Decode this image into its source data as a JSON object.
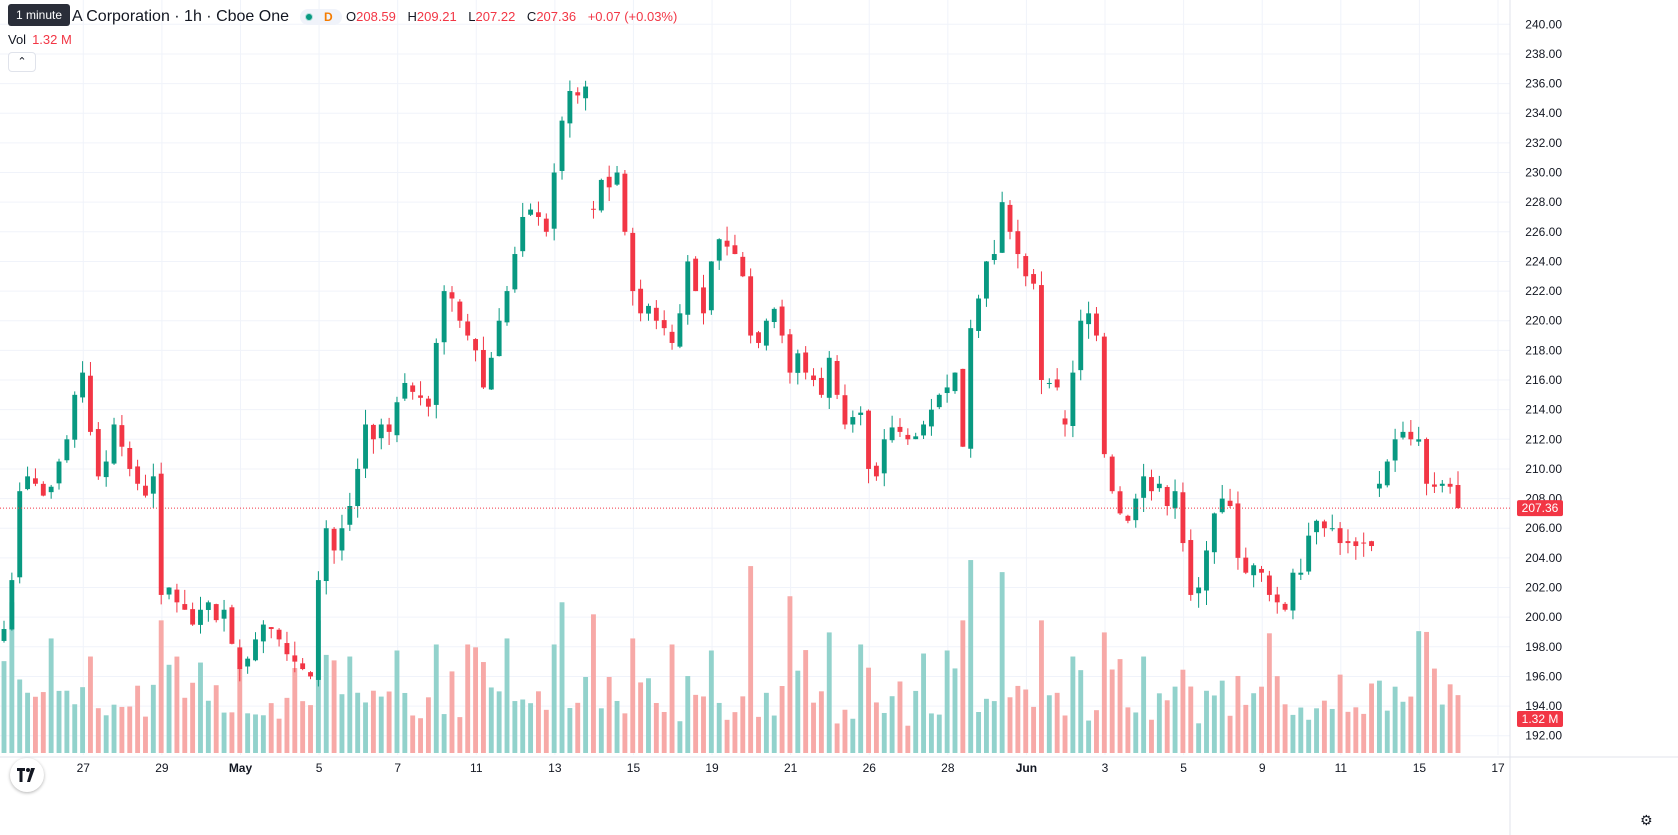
{
  "header": {
    "tooltip": "1 minute",
    "title": "A Corporation · 1h · Cboe One",
    "status_letter": "D",
    "ohlc": {
      "o_label": "O",
      "o": "208.59",
      "h_label": "H",
      "h": "209.21",
      "l_label": "L",
      "l": "207.22",
      "c_label": "C",
      "c": "207.36",
      "change": "+0.07 (+0.03%)"
    },
    "volume_label": "Vol",
    "volume_value": "1.32 M",
    "collapse_icon": "chevron-up-icon"
  },
  "colors": {
    "up": "#089981",
    "down": "#f23645",
    "up_volume": "#92d2cc",
    "down_volume": "#f7a9a7",
    "grid": "#f0f3fa",
    "price_line": "#f23645"
  },
  "chart_data": {
    "type": "candlestick",
    "interval": "1h",
    "y_axis_ticks": [
      "240.00",
      "238.00",
      "236.00",
      "234.00",
      "232.00",
      "230.00",
      "228.00",
      "226.00",
      "224.00",
      "222.00",
      "220.00",
      "218.00",
      "216.00",
      "214.00",
      "212.00",
      "210.00",
      "208.00",
      "206.00",
      "204.00",
      "202.00",
      "200.00",
      "198.00",
      "196.00",
      "194.00",
      "192.00"
    ],
    "ylim": [
      190.7,
      241.1
    ],
    "x_axis_ticks": [
      {
        "label": "27",
        "slot": 5
      },
      {
        "label": "29",
        "slot": 15
      },
      {
        "label": "May",
        "slot": 25
      },
      {
        "label": "5",
        "slot": 35
      },
      {
        "label": "7",
        "slot": 45
      },
      {
        "label": "11",
        "slot": 55
      },
      {
        "label": "13",
        "slot": 65
      },
      {
        "label": "15",
        "slot": 75
      },
      {
        "label": "19",
        "slot": 85
      },
      {
        "label": "21",
        "slot": 95
      },
      {
        "label": "26",
        "slot": 105
      },
      {
        "label": "28",
        "slot": 115
      },
      {
        "label": "Jun",
        "slot": 125
      },
      {
        "label": "3",
        "slot": 135
      },
      {
        "label": "5",
        "slot": 145
      },
      {
        "label": "9",
        "slot": 155
      },
      {
        "label": "11",
        "slot": 165
      },
      {
        "label": "15",
        "slot": 175
      },
      {
        "label": "17",
        "slot": 185
      }
    ],
    "last_price": 207.36,
    "last_price_label": "207.36",
    "last_volume_label": "1.32 M",
    "volume_scale_max": 3.4,
    "gaps_after_slots": [
      74,
      134,
      174
    ],
    "close_path": [
      [
        0,
        199.2
      ],
      [
        1,
        202.5
      ],
      [
        2,
        208.5
      ],
      [
        3,
        209.5
      ],
      [
        4,
        209.0
      ],
      [
        5,
        208.2
      ],
      [
        6,
        208.8
      ],
      [
        7,
        210.5
      ],
      [
        8,
        212.0
      ],
      [
        9,
        215.0
      ],
      [
        10,
        216.5
      ],
      [
        11,
        212.5
      ],
      [
        12,
        209.5
      ],
      [
        13,
        210.5
      ],
      [
        14,
        213.0
      ],
      [
        15,
        211.5
      ],
      [
        16,
        210.0
      ],
      [
        17,
        209.0
      ],
      [
        18,
        208.2
      ],
      [
        19,
        209.5
      ],
      [
        20,
        201.5
      ],
      [
        21,
        202.0
      ],
      [
        22,
        201.0
      ],
      [
        23,
        200.5
      ],
      [
        24,
        199.5
      ],
      [
        25,
        200.5
      ],
      [
        26,
        201.0
      ],
      [
        27,
        199.8
      ],
      [
        28,
        200.5
      ],
      [
        29,
        198.2
      ],
      [
        30,
        196.5
      ],
      [
        31,
        197.2
      ],
      [
        32,
        198.5
      ],
      [
        33,
        199.5
      ],
      [
        34,
        199.2
      ],
      [
        35,
        198.5
      ],
      [
        36,
        197.5
      ],
      [
        37,
        197.0
      ],
      [
        38,
        196.5
      ],
      [
        39,
        196.0
      ],
      [
        40,
        202.5
      ],
      [
        41,
        206.0
      ],
      [
        42,
        204.5
      ],
      [
        43,
        206.0
      ],
      [
        44,
        207.5
      ],
      [
        45,
        210.0
      ],
      [
        46,
        213.0
      ],
      [
        47,
        212.0
      ],
      [
        48,
        213.0
      ],
      [
        49,
        212.5
      ],
      [
        50,
        214.5
      ],
      [
        51,
        215.8
      ],
      [
        52,
        215.2
      ],
      [
        53,
        214.8
      ],
      [
        54,
        214.2
      ],
      [
        55,
        218.5
      ],
      [
        56,
        222.0
      ],
      [
        57,
        221.5
      ],
      [
        58,
        220.0
      ],
      [
        59,
        219.0
      ],
      [
        60,
        218.0
      ],
      [
        61,
        215.5
      ],
      [
        62,
        217.5
      ],
      [
        63,
        220.0
      ],
      [
        64,
        222.0
      ],
      [
        65,
        224.5
      ],
      [
        66,
        227.0
      ],
      [
        67,
        227.5
      ],
      [
        68,
        227.0
      ],
      [
        69,
        226.0
      ],
      [
        70,
        230.0
      ],
      [
        71,
        233.5
      ],
      [
        72,
        235.5
      ],
      [
        73,
        235.2
      ],
      [
        74,
        235.8
      ],
      [
        75,
        227.5
      ],
      [
        76,
        229.5
      ],
      [
        77,
        229.0
      ],
      [
        78,
        230.0
      ],
      [
        79,
        226.0
      ],
      [
        80,
        222.0
      ],
      [
        81,
        220.5
      ],
      [
        82,
        221.0
      ],
      [
        83,
        220.0
      ],
      [
        84,
        219.5
      ],
      [
        85,
        218.5
      ],
      [
        86,
        220.5
      ],
      [
        87,
        224.0
      ],
      [
        88,
        222.0
      ],
      [
        89,
        220.5
      ],
      [
        90,
        224.0
      ],
      [
        91,
        225.5
      ],
      [
        92,
        225.0
      ],
      [
        93,
        224.5
      ],
      [
        94,
        223.0
      ],
      [
        95,
        219.0
      ],
      [
        96,
        218.5
      ],
      [
        97,
        220.0
      ],
      [
        98,
        220.8
      ],
      [
        99,
        219.0
      ],
      [
        100,
        216.5
      ],
      [
        101,
        217.8
      ],
      [
        102,
        216.5
      ],
      [
        103,
        216.0
      ],
      [
        104,
        215.0
      ],
      [
        105,
        217.5
      ],
      [
        106,
        215.0
      ],
      [
        107,
        213.0
      ],
      [
        108,
        213.5
      ],
      [
        109,
        213.8
      ],
      [
        110,
        210.0
      ],
      [
        111,
        209.5
      ],
      [
        112,
        212.0
      ],
      [
        113,
        212.8
      ],
      [
        114,
        212.5
      ],
      [
        115,
        212.0
      ],
      [
        116,
        212.2
      ],
      [
        117,
        213.0
      ],
      [
        118,
        214.0
      ],
      [
        119,
        215.0
      ],
      [
        120,
        215.5
      ],
      [
        121,
        216.5
      ],
      [
        122,
        211.5
      ],
      [
        123,
        219.5
      ],
      [
        124,
        221.5
      ],
      [
        125,
        224.0
      ],
      [
        126,
        224.5
      ],
      [
        127,
        228.0
      ],
      [
        128,
        226.0
      ],
      [
        129,
        224.5
      ],
      [
        130,
        223.0
      ],
      [
        131,
        222.5
      ],
      [
        132,
        216.0
      ],
      [
        133,
        215.8
      ],
      [
        134,
        215.5
      ],
      [
        135,
        213.0
      ],
      [
        136,
        216.5
      ],
      [
        137,
        220.0
      ],
      [
        138,
        220.5
      ],
      [
        139,
        219.0
      ],
      [
        140,
        211.0
      ],
      [
        141,
        208.5
      ],
      [
        142,
        207.0
      ],
      [
        143,
        206.5
      ],
      [
        144,
        208.0
      ],
      [
        145,
        209.5
      ],
      [
        146,
        208.5
      ],
      [
        147,
        209.0
      ],
      [
        148,
        207.5
      ],
      [
        149,
        208.5
      ],
      [
        150,
        205.0
      ],
      [
        151,
        201.5
      ],
      [
        152,
        202.0
      ],
      [
        153,
        204.5
      ],
      [
        154,
        207.0
      ],
      [
        155,
        208.0
      ],
      [
        156,
        207.5
      ],
      [
        157,
        204.0
      ],
      [
        158,
        203.0
      ],
      [
        159,
        203.5
      ],
      [
        160,
        203.0
      ],
      [
        161,
        201.5
      ],
      [
        162,
        201.0
      ],
      [
        163,
        200.5
      ],
      [
        164,
        203.0
      ],
      [
        165,
        203.0
      ],
      [
        166,
        205.5
      ],
      [
        167,
        206.5
      ],
      [
        168,
        206.0
      ],
      [
        169,
        206.0
      ],
      [
        170,
        205.0
      ],
      [
        171,
        205.0
      ],
      [
        172,
        204.8
      ],
      [
        173,
        205.0
      ],
      [
        174,
        204.8
      ],
      [
        175,
        209.0
      ],
      [
        176,
        210.5
      ],
      [
        177,
        212.0
      ],
      [
        178,
        212.5
      ],
      [
        179,
        212.0
      ],
      [
        180,
        212.0
      ],
      [
        181,
        209.0
      ],
      [
        182,
        208.8
      ],
      [
        183,
        209.0
      ],
      [
        184,
        208.8
      ],
      [
        185,
        207.36
      ]
    ],
    "volume_pattern_millions": [
      1.8,
      1.6,
      1.4,
      1.0,
      0.9,
      0.8,
      0.7,
      1.0,
      0.8,
      0.9,
      1.2,
      0.9,
      0.7,
      0.8,
      1.1,
      0.6,
      0.8,
      1.3,
      0.7,
      0.9
    ],
    "volume_spikes_millions": [
      [
        1,
        2.5
      ],
      [
        6,
        1.9
      ],
      [
        11,
        1.6
      ],
      [
        20,
        2.2
      ],
      [
        25,
        1.5
      ],
      [
        30,
        1.4
      ],
      [
        40,
        2.2
      ],
      [
        44,
        1.6
      ],
      [
        50,
        1.7
      ],
      [
        55,
        1.8
      ],
      [
        59,
        1.8
      ],
      [
        64,
        1.9
      ],
      [
        70,
        1.8
      ],
      [
        71,
        2.5
      ],
      [
        75,
        2.3
      ],
      [
        80,
        1.9
      ],
      [
        85,
        1.8
      ],
      [
        90,
        1.7
      ],
      [
        95,
        3.1
      ],
      [
        100,
        2.6
      ],
      [
        105,
        2.0
      ],
      [
        109,
        1.8
      ],
      [
        120,
        1.7
      ],
      [
        122,
        2.2
      ],
      [
        123,
        3.2
      ],
      [
        127,
        3.0
      ],
      [
        132,
        2.2
      ],
      [
        136,
        1.6
      ],
      [
        140,
        2.0
      ],
      [
        145,
        1.6
      ],
      [
        155,
        1.2
      ],
      [
        160,
        1.1
      ],
      [
        170,
        1.3
      ],
      [
        175,
        1.2
      ],
      [
        177,
        1.1
      ],
      [
        182,
        1.4
      ]
    ]
  }
}
